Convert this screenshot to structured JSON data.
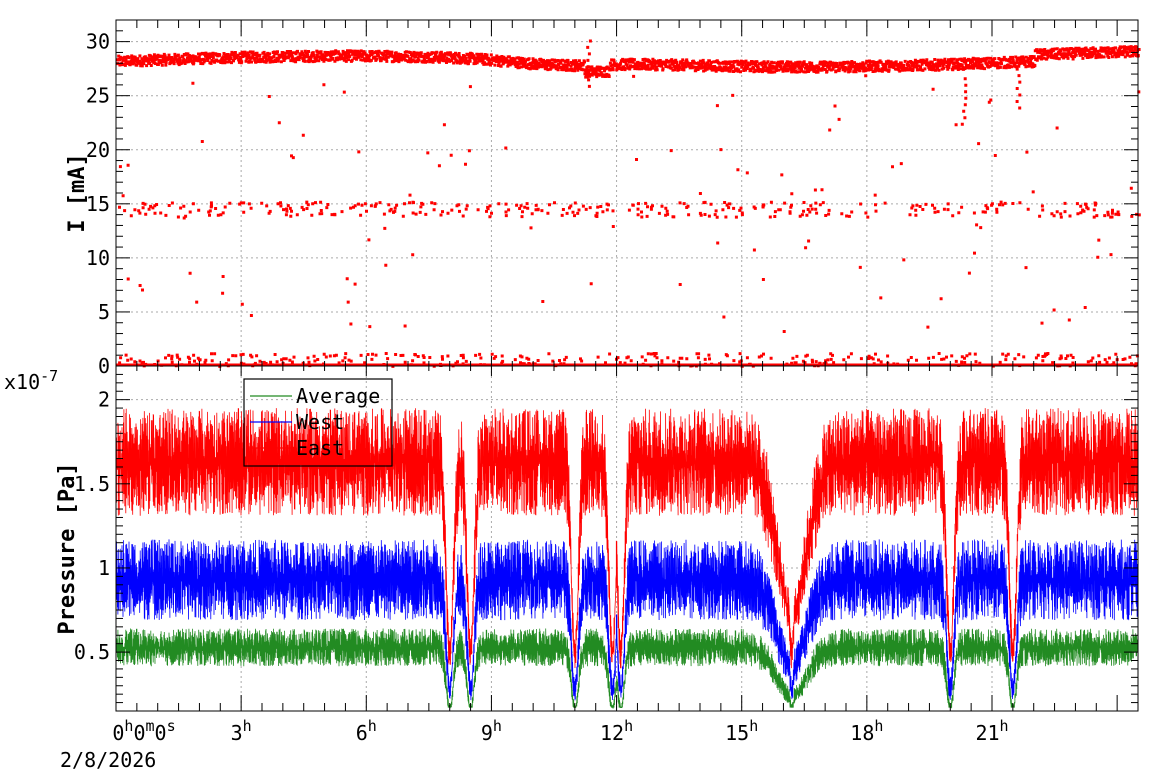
{
  "chart_data": [
    {
      "type": "scatter",
      "ylabel": "I [mA]",
      "ylim": [
        0,
        32
      ],
      "ytick_labels": [
        "0",
        "5",
        "10",
        "15",
        "20",
        "25",
        "30"
      ],
      "grid": true,
      "x_unit": "hours",
      "xlim": [
        0,
        24.5
      ],
      "series": [
        {
          "color": "#ff0000",
          "marker": "square",
          "bands": [
            {
              "level": 28.3,
              "spread": 0.5,
              "density": "dense"
            },
            {
              "level": 14.6,
              "spread": 0.7,
              "density": "sparse"
            },
            {
              "level": 0.7,
              "spread": 0.6,
              "density": "sparse"
            },
            {
              "level": 0.0,
              "spread": 0.0,
              "density": "continuous"
            }
          ],
          "dips": [
            {
              "x": 11.3,
              "y": 26.0
            },
            {
              "x": 20.3,
              "y": 22.5
            },
            {
              "x": 21.6,
              "y": 24.0
            }
          ]
        }
      ]
    },
    {
      "type": "line",
      "ylabel": "Pressure [Pa]",
      "y_exponent_label": "x10",
      "y_exponent_power": "-7",
      "ylim": [
        0.15,
        2.2
      ],
      "ytick_labels": [
        "0.5",
        "1",
        "1.5",
        "2"
      ],
      "grid": true,
      "x_unit": "hours",
      "xlim": [
        0,
        24.5
      ],
      "legend_position": "top-left",
      "series": [
        {
          "name": "Average",
          "color": "#228b22",
          "base": 0.5,
          "spread": 0.14
        },
        {
          "name": "West",
          "color": "#0000ff",
          "base": 0.87,
          "spread": 0.3
        },
        {
          "name": "East",
          "color": "#ff0000",
          "base": 1.55,
          "spread": 0.4
        }
      ],
      "dips": [
        {
          "x": 8.0,
          "level": 0.2
        },
        {
          "x": 8.5,
          "level": 0.35
        },
        {
          "x": 11.0,
          "level": 0.2
        },
        {
          "x": 11.9,
          "level": 0.2
        },
        {
          "x": 12.1,
          "level": 0.25
        },
        {
          "x": 16.2,
          "level": 0.35
        },
        {
          "x": 20.0,
          "level": 0.3
        },
        {
          "x": 21.5,
          "level": 0.2
        }
      ]
    }
  ],
  "x_axis": {
    "ticks": [
      {
        "hour": 0,
        "label": "0",
        "sup": "h",
        "label2": "0",
        "sup2": "m",
        "label3": "0",
        "sup3": "s"
      },
      {
        "hour": 3,
        "label": "3",
        "sup": "h"
      },
      {
        "hour": 6,
        "label": "6",
        "sup": "h"
      },
      {
        "hour": 9,
        "label": "9",
        "sup": "h"
      },
      {
        "hour": 12,
        "label": "12",
        "sup": "h"
      },
      {
        "hour": 15,
        "label": "15",
        "sup": "h"
      },
      {
        "hour": 18,
        "label": "18",
        "sup": "h"
      },
      {
        "hour": 21,
        "label": "21",
        "sup": "h"
      }
    ],
    "date_label": "2/8/2026"
  }
}
